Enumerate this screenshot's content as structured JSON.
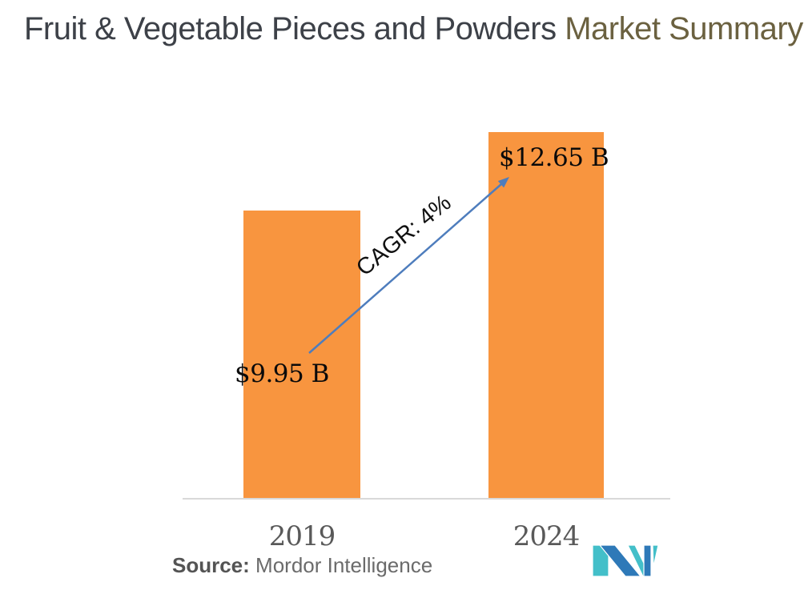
{
  "title": {
    "part1": "Fruit & Vegetable Pieces and Powders ",
    "part2": "Market Summary"
  },
  "chart_data": {
    "type": "bar",
    "title": "Fruit & Vegetable Pieces and Powders Market Summary",
    "categories": [
      "2019",
      "2024"
    ],
    "values": [
      9.95,
      12.65
    ],
    "value_labels": [
      "$9.95 B",
      "$12.65 B"
    ],
    "annotation": "CAGR: 4%",
    "ylim": [
      0,
      14
    ],
    "grid": false,
    "legend": "none",
    "bar_color": "#F8953F"
  },
  "source": {
    "prefix": "Source:",
    "name": "Mordor Intelligence"
  },
  "colors": {
    "title_main": "#3d4148",
    "title_accent": "#6b6140",
    "bar": "#F8953F",
    "arrow": "#4E7DBD",
    "axis": "#d9d9d9",
    "tick_labels": "#595959",
    "logo_teal": "#43BFC9",
    "logo_blue": "#2E79B8"
  },
  "logo": {
    "name": "Mordor Intelligence logo"
  }
}
